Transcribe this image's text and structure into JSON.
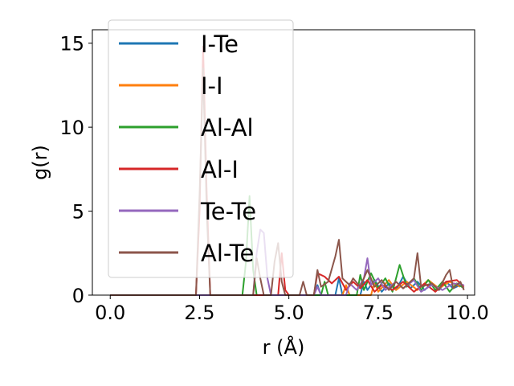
{
  "chart_data": {
    "type": "line",
    "xlabel": "r (Å)",
    "ylabel": "g(r)",
    "xlim": [
      -0.5,
      10.2
    ],
    "ylim": [
      0,
      15.8
    ],
    "xticks": [
      "0.0",
      "2.5",
      "5.0",
      "7.5",
      "10.0"
    ],
    "xtick_values": [
      0,
      2.5,
      5,
      7.5,
      10
    ],
    "yticks": [
      "0",
      "5",
      "10",
      "15"
    ],
    "ytick_values": [
      0,
      5,
      10,
      15
    ],
    "grid": false,
    "legend_position": "top-left",
    "series": [
      {
        "name": "I-Te",
        "color": "#1f77b4",
        "points": [
          [
            0,
            0
          ],
          [
            5.7,
            0
          ],
          [
            5.8,
            0.6
          ],
          [
            5.9,
            0
          ],
          [
            6.3,
            0
          ],
          [
            6.4,
            1.0
          ],
          [
            6.5,
            0
          ],
          [
            7.0,
            0
          ],
          [
            7.1,
            0.8
          ],
          [
            7.2,
            0.3
          ],
          [
            7.4,
            0.9
          ],
          [
            7.6,
            0.2
          ],
          [
            7.8,
            0.7
          ],
          [
            8.0,
            0.3
          ],
          [
            8.2,
            1.1
          ],
          [
            8.4,
            0.4
          ],
          [
            8.6,
            0.8
          ],
          [
            8.8,
            0.3
          ],
          [
            9.0,
            0.7
          ],
          [
            9.2,
            0.3
          ],
          [
            9.4,
            0.8
          ],
          [
            9.6,
            0.4
          ],
          [
            9.8,
            0.6
          ]
        ]
      },
      {
        "name": "I-I",
        "color": "#ff7f0e",
        "points": [
          [
            0,
            0
          ],
          [
            6.5,
            0
          ],
          [
            6.6,
            0.6
          ],
          [
            6.7,
            0
          ],
          [
            7.3,
            0
          ],
          [
            7.4,
            0.8
          ],
          [
            7.5,
            0.2
          ],
          [
            7.8,
            0.9
          ],
          [
            8.0,
            0.3
          ],
          [
            8.3,
            0.8
          ],
          [
            8.6,
            0.3
          ],
          [
            8.9,
            0.9
          ],
          [
            9.2,
            0.4
          ],
          [
            9.5,
            0.8
          ],
          [
            9.8,
            0.5
          ]
        ]
      },
      {
        "name": "Al-Al",
        "color": "#2ca02c",
        "points": [
          [
            0,
            0
          ],
          [
            3.7,
            0
          ],
          [
            3.8,
            2.0
          ],
          [
            3.9,
            5.9
          ],
          [
            4.0,
            1.5
          ],
          [
            4.1,
            0
          ],
          [
            5.9,
            0
          ],
          [
            6.0,
            0.8
          ],
          [
            6.1,
            0
          ],
          [
            6.9,
            0
          ],
          [
            7.0,
            1.2
          ],
          [
            7.1,
            0.3
          ],
          [
            7.3,
            1.3
          ],
          [
            7.5,
            0.4
          ],
          [
            7.7,
            1.0
          ],
          [
            7.9,
            0.2
          ],
          [
            8.1,
            1.8
          ],
          [
            8.3,
            0.5
          ],
          [
            8.5,
            1.0
          ],
          [
            8.7,
            0.3
          ],
          [
            8.9,
            0.9
          ],
          [
            9.1,
            0.3
          ],
          [
            9.3,
            0.8
          ],
          [
            9.5,
            0.2
          ],
          [
            9.7,
            0.7
          ],
          [
            9.9,
            0.4
          ]
        ]
      },
      {
        "name": "Al-I",
        "color": "#d62728",
        "points": [
          [
            0,
            0
          ],
          [
            2.4,
            0
          ],
          [
            2.5,
            5.0
          ],
          [
            2.6,
            14.8
          ],
          [
            2.7,
            6.0
          ],
          [
            2.8,
            0
          ],
          [
            4.7,
            0
          ],
          [
            4.8,
            2.5
          ],
          [
            4.9,
            0.3
          ],
          [
            5.0,
            0
          ],
          [
            5.7,
            0
          ],
          [
            5.8,
            1.3
          ],
          [
            6.0,
            1.1
          ],
          [
            6.2,
            0.7
          ],
          [
            6.4,
            1.1
          ],
          [
            6.6,
            0.3
          ],
          [
            6.8,
            0.8
          ],
          [
            7.0,
            0.4
          ],
          [
            7.2,
            0.9
          ],
          [
            7.4,
            0.2
          ],
          [
            7.6,
            0.6
          ],
          [
            7.9,
            0.3
          ],
          [
            8.2,
            0.8
          ],
          [
            8.5,
            0.2
          ],
          [
            8.8,
            0.7
          ],
          [
            9.1,
            0.2
          ],
          [
            9.4,
            0.8
          ],
          [
            9.7,
            0.9
          ],
          [
            9.9,
            0.5
          ]
        ]
      },
      {
        "name": "Te-Te",
        "color": "#9467bd",
        "points": [
          [
            0,
            0
          ],
          [
            4.0,
            0
          ],
          [
            4.1,
            2.5
          ],
          [
            4.2,
            3.9
          ],
          [
            4.3,
            3.7
          ],
          [
            4.4,
            1.0
          ],
          [
            4.5,
            0
          ],
          [
            5.7,
            0
          ],
          [
            5.8,
            0.5
          ],
          [
            5.9,
            0
          ],
          [
            6.6,
            0
          ],
          [
            6.7,
            0.7
          ],
          [
            6.9,
            0.3
          ],
          [
            7.1,
            1.0
          ],
          [
            7.2,
            2.2
          ],
          [
            7.3,
            0.6
          ],
          [
            7.5,
            1.0
          ],
          [
            7.7,
            0.3
          ],
          [
            8.0,
            0.8
          ],
          [
            8.2,
            0.4
          ],
          [
            8.5,
            0.9
          ],
          [
            8.7,
            0.2
          ],
          [
            9.0,
            0.6
          ],
          [
            9.3,
            0.3
          ],
          [
            9.6,
            0.7
          ],
          [
            9.9,
            0.6
          ]
        ]
      },
      {
        "name": "Al-Te",
        "color": "#8c564b",
        "points": [
          [
            0,
            0
          ],
          [
            2.4,
            0
          ],
          [
            2.5,
            6.0
          ],
          [
            2.6,
            13.5
          ],
          [
            2.7,
            5.0
          ],
          [
            2.8,
            0
          ],
          [
            4.0,
            0
          ],
          [
            4.1,
            2.2
          ],
          [
            4.2,
            1.0
          ],
          [
            4.3,
            0
          ],
          [
            4.5,
            0
          ],
          [
            4.6,
            2.0
          ],
          [
            4.7,
            3.1
          ],
          [
            4.8,
            0.8
          ],
          [
            4.9,
            0
          ],
          [
            5.3,
            0
          ],
          [
            5.4,
            0.8
          ],
          [
            5.5,
            0
          ],
          [
            5.7,
            0
          ],
          [
            5.8,
            1.5
          ],
          [
            5.9,
            0.5
          ],
          [
            6.1,
            0.8
          ],
          [
            6.3,
            2.3
          ],
          [
            6.4,
            3.3
          ],
          [
            6.5,
            1.0
          ],
          [
            6.7,
            0.6
          ],
          [
            6.8,
            1.0
          ],
          [
            7.0,
            0.5
          ],
          [
            7.2,
            1.5
          ],
          [
            7.4,
            0.5
          ],
          [
            7.6,
            0.9
          ],
          [
            7.8,
            0.3
          ],
          [
            8.0,
            0.8
          ],
          [
            8.2,
            0.4
          ],
          [
            8.5,
            1.0
          ],
          [
            8.6,
            2.5
          ],
          [
            8.7,
            0.5
          ],
          [
            9.0,
            0.7
          ],
          [
            9.2,
            0.3
          ],
          [
            9.4,
            1.2
          ],
          [
            9.5,
            1.5
          ],
          [
            9.6,
            0.4
          ],
          [
            9.8,
            0.8
          ],
          [
            9.9,
            0.3
          ]
        ]
      }
    ]
  }
}
